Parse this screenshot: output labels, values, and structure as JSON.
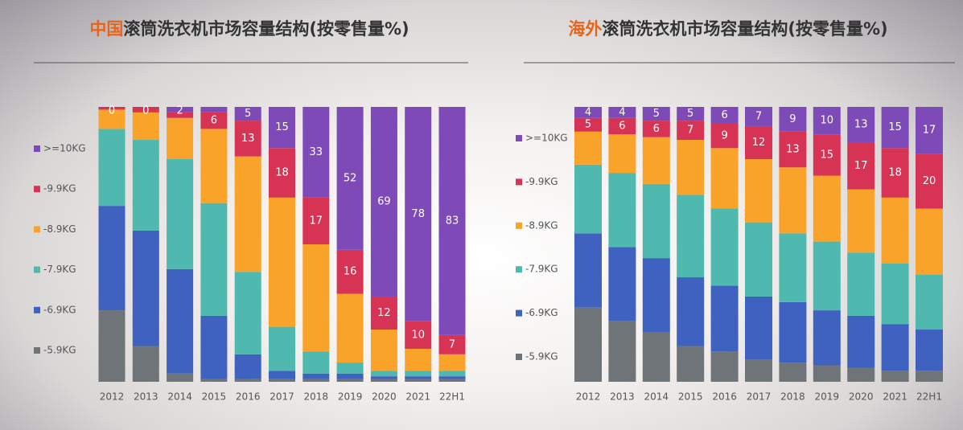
{
  "chart_data": [
    {
      "type": "stacked_bar",
      "title_highlight": "中国",
      "title": "滚筒洗衣机市场容量结构(按零售量%)",
      "categories": [
        "2012",
        "2013",
        "2014",
        "2015",
        "2016",
        "2017",
        "2018",
        "2019",
        "2020",
        "2021",
        "22H1"
      ],
      "ylim": [
        0,
        100
      ],
      "series": [
        {
          "name": "-5.9KG",
          "color": "#6e7478",
          "values": [
            26,
            13,
            3,
            1,
            1,
            1,
            1,
            1,
            1,
            1,
            1
          ]
        },
        {
          "name": "-6.9KG",
          "color": "#3f62c0",
          "values": [
            38,
            42,
            38,
            23,
            9,
            3,
            2,
            2,
            1,
            1,
            1
          ]
        },
        {
          "name": "-7.9KG",
          "color": "#4fb9b0",
          "values": [
            28,
            33,
            40,
            41,
            30,
            16,
            8,
            4,
            2,
            2,
            2
          ]
        },
        {
          "name": "-8.9KG",
          "color": "#f9a32b",
          "values": [
            7,
            10,
            15,
            27,
            42,
            47,
            39,
            25,
            15,
            8,
            6
          ]
        },
        {
          "name": "-9.9KG",
          "color": "#d63355",
          "values": [
            1,
            2,
            2,
            6,
            13,
            18,
            17,
            16,
            12,
            10,
            7
          ],
          "value_labels": [
            null,
            null,
            null,
            "6",
            "13",
            "18",
            "17",
            "16",
            "12",
            "10",
            "7"
          ]
        },
        {
          "name": ">=10KG",
          "color": "#7e4ab8",
          "values": [
            0,
            0,
            2,
            2,
            5,
            15,
            33,
            52,
            69,
            78,
            83
          ],
          "value_labels": [
            "0",
            "0",
            "2",
            null,
            "5",
            "15",
            "33",
            "52",
            "69",
            "78",
            "83"
          ]
        }
      ]
    },
    {
      "type": "stacked_bar",
      "title_highlight": "海外",
      "title": "滚筒洗衣机市场容量结构(按零售量%)",
      "categories": [
        "2012",
        "2013",
        "2014",
        "2015",
        "2016",
        "2017",
        "2018",
        "2019",
        "2020",
        "2021",
        "22H1"
      ],
      "ylim": [
        0,
        100
      ],
      "series": [
        {
          "name": "-5.9KG",
          "color": "#6e7478",
          "values": [
            27,
            22,
            18,
            13,
            11,
            8,
            7,
            6,
            5,
            4,
            4
          ]
        },
        {
          "name": "-6.9KG",
          "color": "#3f62c0",
          "values": [
            27,
            27,
            27,
            25,
            24,
            23,
            22,
            20,
            19,
            17,
            15
          ]
        },
        {
          "name": "-7.9KG",
          "color": "#4fb9b0",
          "values": [
            25,
            27,
            27,
            30,
            28,
            27,
            25,
            25,
            23,
            22,
            20
          ]
        },
        {
          "name": "-8.9KG",
          "color": "#f9a32b",
          "values": [
            12,
            14,
            17,
            20,
            22,
            23,
            24,
            24,
            23,
            24,
            24
          ]
        },
        {
          "name": "-9.9KG",
          "color": "#d63355",
          "values": [
            5,
            6,
            6,
            7,
            9,
            12,
            13,
            15,
            17,
            18,
            20
          ],
          "value_labels": [
            "5",
            "6",
            "6",
            "7",
            "9",
            "12",
            "13",
            "15",
            "17",
            "18",
            "20"
          ]
        },
        {
          "name": ">=10KG",
          "color": "#7e4ab8",
          "values": [
            4,
            4,
            5,
            5,
            6,
            7,
            9,
            10,
            13,
            15,
            17
          ],
          "value_labels": [
            "4",
            "4",
            "5",
            "5",
            "6",
            "7",
            "9",
            "10",
            "13",
            "15",
            "17"
          ]
        }
      ]
    }
  ]
}
